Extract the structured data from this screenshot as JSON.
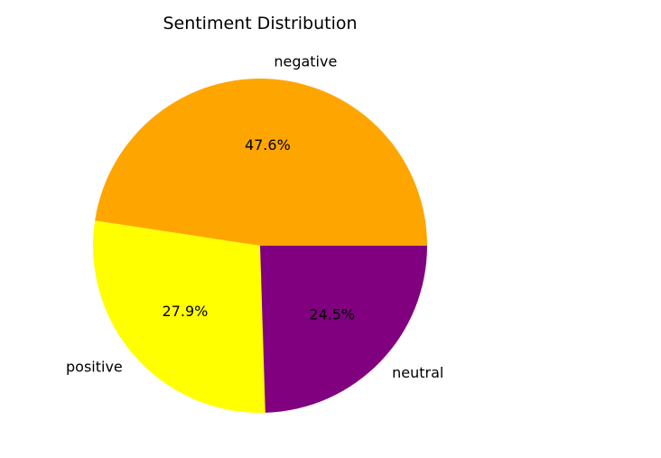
{
  "chart_data": {
    "type": "pie",
    "title": "Sentiment Distribution",
    "categories": [
      "negative",
      "positive",
      "neutral"
    ],
    "values": [
      47.6,
      27.9,
      24.5
    ],
    "percent_labels": [
      "47.6%",
      "27.9%",
      "24.5%"
    ],
    "colors": [
      "#FFA500",
      "#FFFF00",
      "#800080"
    ],
    "start_angle_deg": 0,
    "direction": "counterclockwise",
    "legend": "none"
  }
}
